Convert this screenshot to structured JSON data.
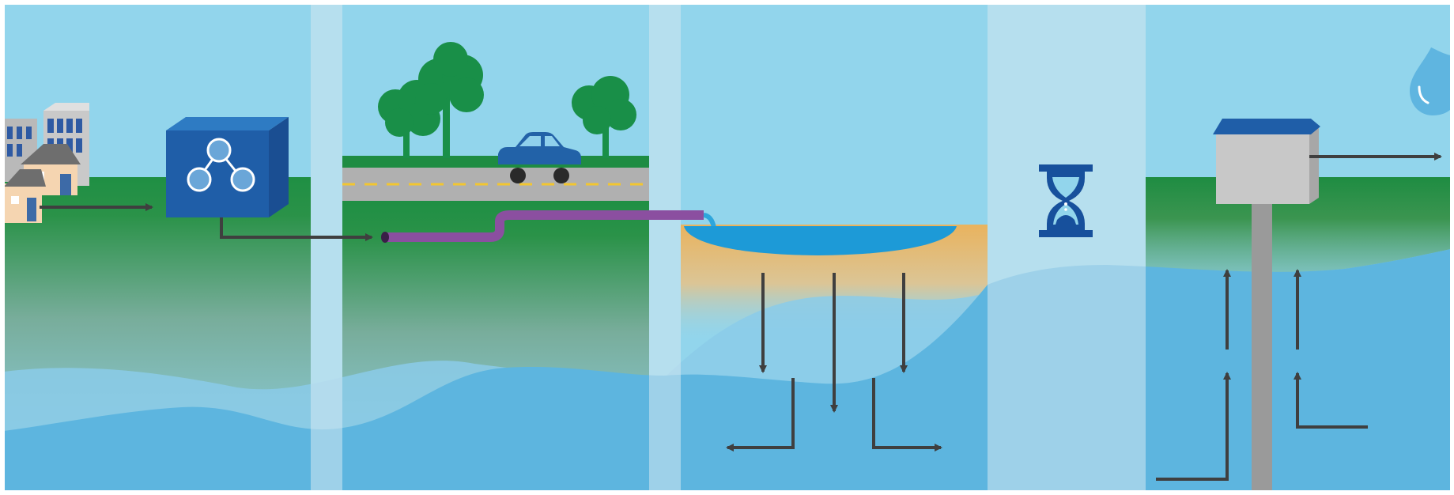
{
  "diagram": {
    "stages": [
      {
        "id": "collection",
        "icons": [
          "buildings-icon",
          "houses-icon",
          "treatment-cube-icon"
        ]
      },
      {
        "id": "conveyance",
        "icons": [
          "trees-icon",
          "road-icon",
          "car-icon",
          "pipe-icon"
        ]
      },
      {
        "id": "infiltration",
        "icons": [
          "basin-icon",
          "infiltration-arrows-icon"
        ]
      },
      {
        "id": "storage",
        "icons": [
          "hourglass-icon"
        ]
      },
      {
        "id": "recovery",
        "icons": [
          "well-icon",
          "extraction-arrows-icon",
          "water-drop-icon"
        ]
      }
    ],
    "colors": {
      "sky": "#92d5ec",
      "grass": "#1e8c42",
      "groundwater": "#5db5df",
      "divider": "#d3e7f1",
      "cube": "#1f5ea8",
      "pipe": "#8b4fa0",
      "basin": "#1d9ad7",
      "sand": "#e9b563",
      "hourglass": "#17509c",
      "arrow": "#3f3f3f",
      "tree": "#198f48",
      "car": "#2262a8"
    }
  }
}
